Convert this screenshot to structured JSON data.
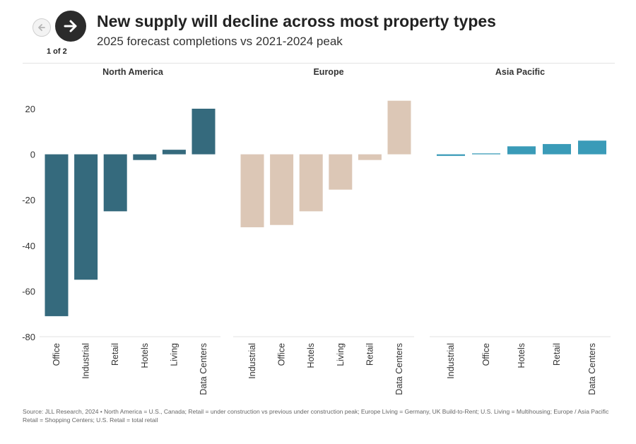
{
  "header": {
    "title": "New supply will decline across most property types",
    "subtitle": "2025 forecast completions vs 2021-2024 peak",
    "pager": "1 of 2",
    "prev_icon": "arrow-left-icon",
    "next_icon": "arrow-right-icon"
  },
  "chart_data": {
    "type": "bar",
    "ylim": [
      -80,
      20
    ],
    "yticks": [
      20,
      0,
      -20,
      -40,
      -60,
      -80
    ],
    "grid": false,
    "panels": [
      {
        "name": "North America",
        "color": "#356a7d",
        "categories": [
          "Office",
          "Industrial",
          "Retail",
          "Hotels",
          "Living",
          "Data Centers"
        ],
        "values": [
          -71,
          -55,
          -25,
          -2.5,
          2,
          20
        ]
      },
      {
        "name": "Europe",
        "color": "#dcc7b6",
        "categories": [
          "Industrial",
          "Office",
          "Hotels",
          "Living",
          "Retail",
          "Data Centers"
        ],
        "values": [
          -32,
          -31,
          -25,
          -15.5,
          -2.5,
          23.5
        ]
      },
      {
        "name": "Asia Pacific",
        "color": "#3a9bb8",
        "categories": [
          "Industrial",
          "Office",
          "Hotels",
          "Retail",
          "Data Centers"
        ],
        "values": [
          -0.7,
          0.4,
          3.5,
          4.5,
          6
        ]
      }
    ]
  },
  "footer": {
    "source": "Source: JLL Research, 2024 • North America = U.S., Canada; Retail = under construction vs previous under construction peak; Europe Living = Germany, UK Build-to-Rent; U.S. Living = Multihousing; Europe / Asia Pacific Retail = Shopping Centers; U.S. Retail = total retail"
  }
}
